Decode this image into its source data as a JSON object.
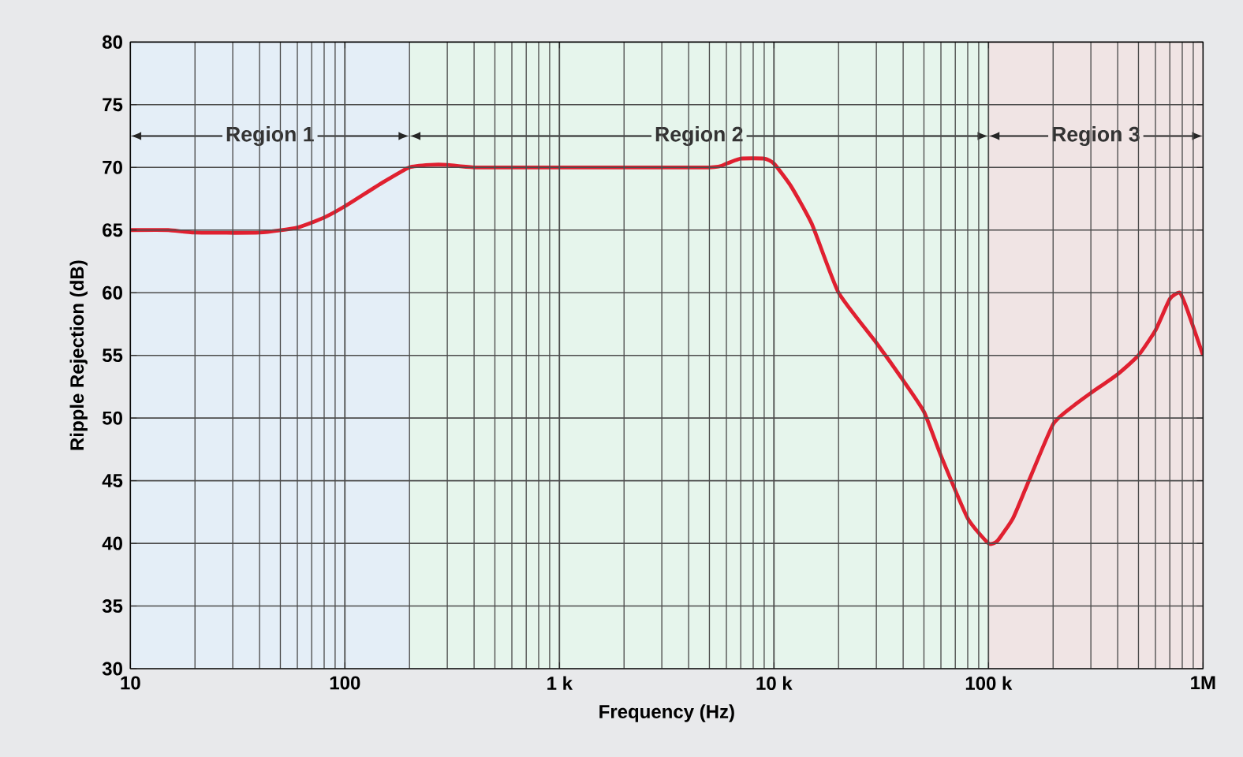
{
  "chart_data": {
    "type": "line",
    "xlabel": "Frequency (Hz)",
    "ylabel": "Ripple Rejection (dB)",
    "log": "x",
    "grid": true,
    "xlim": [
      10,
      1000000
    ],
    "ylim": [
      30,
      80
    ],
    "xticks": [
      {
        "value": 10,
        "label": "10"
      },
      {
        "value": 100,
        "label": "100"
      },
      {
        "value": 1000,
        "label": "1 k"
      },
      {
        "value": 10000,
        "label": "10 k"
      },
      {
        "value": 100000,
        "label": "100 k"
      },
      {
        "value": 1000000,
        "label": "1M"
      }
    ],
    "yticks": [
      30,
      35,
      40,
      45,
      50,
      55,
      60,
      65,
      70,
      75,
      80
    ],
    "bands": [
      {
        "axis": "x",
        "from": 10,
        "to": 200,
        "label": "Region 1",
        "color": "#e4eef7"
      },
      {
        "axis": "x",
        "from": 200,
        "to": 100000,
        "label": "Region 2",
        "color": "#e6f5ec"
      },
      {
        "axis": "x",
        "from": 100000,
        "to": 1000000,
        "label": "Region 3",
        "color": "#f0e4e4"
      }
    ],
    "series": [
      {
        "color": "#e02030",
        "x": [
          10,
          15,
          20,
          40,
          60,
          80,
          100,
          150,
          200,
          250,
          300,
          400,
          1000,
          5000,
          6000,
          7000,
          9000,
          10000,
          12000,
          15000,
          20000,
          30000,
          40000,
          50000,
          60000,
          80000,
          100000,
          110000,
          130000,
          150000,
          200000,
          250000,
          300000,
          400000,
          500000,
          600000,
          700000,
          780000,
          850000,
          1000000
        ],
        "values": [
          65,
          65,
          64.8,
          64.8,
          65.2,
          66,
          66.9,
          68.8,
          70,
          70.2,
          70.2,
          70,
          70,
          70,
          70.3,
          70.7,
          70.7,
          70.3,
          68.5,
          65.5,
          60,
          56,
          53,
          50.5,
          47,
          42,
          40,
          40.2,
          42,
          44.5,
          49.5,
          51,
          52,
          53.5,
          55,
          57,
          59.5,
          60,
          58.5,
          55
        ]
      }
    ]
  }
}
